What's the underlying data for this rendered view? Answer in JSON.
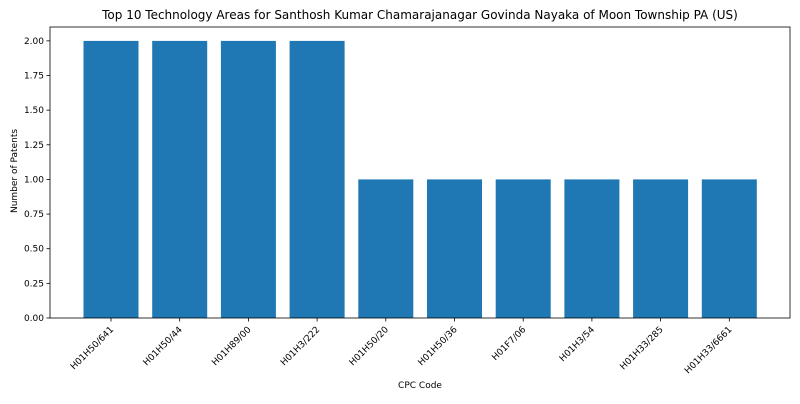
{
  "chart_data": {
    "type": "bar",
    "title": "Top 10 Technology Areas for Santhosh Kumar Chamarajanagar Govinda Nayaka of Moon Township PA (US)",
    "xlabel": "CPC Code",
    "ylabel": "Number of Patents",
    "categories": [
      "H01H50/641",
      "H01H50/44",
      "H01H89/00",
      "H01H3/222",
      "H01H50/20",
      "H01H50/36",
      "H01F7/06",
      "H01H3/54",
      "H01H33/285",
      "H01H33/6661"
    ],
    "values": [
      2,
      2,
      2,
      2,
      1,
      1,
      1,
      1,
      1,
      1
    ],
    "ylim": [
      0,
      2.1
    ],
    "yticks": [
      "0.00",
      "0.25",
      "0.50",
      "0.75",
      "1.00",
      "1.25",
      "1.50",
      "1.75",
      "2.00"
    ],
    "bar_color": "#1f77b4",
    "grid": false,
    "legend": "none"
  }
}
